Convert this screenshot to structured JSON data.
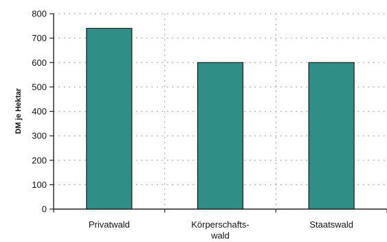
{
  "chart_data": {
    "type": "bar",
    "categories": [
      [
        "Privatwald"
      ],
      [
        "Körperschafts-",
        "wald"
      ],
      [
        "Staatswald"
      ]
    ],
    "values": [
      740,
      600,
      600
    ],
    "title": "",
    "xlabel": "",
    "ylabel": "DM je Hektar",
    "ylim": [
      0,
      800
    ],
    "yticks": [
      0,
      100,
      200,
      300,
      400,
      500,
      600,
      700,
      800
    ],
    "grid": true,
    "legend": "none",
    "bar_color": "#2f8f86"
  }
}
